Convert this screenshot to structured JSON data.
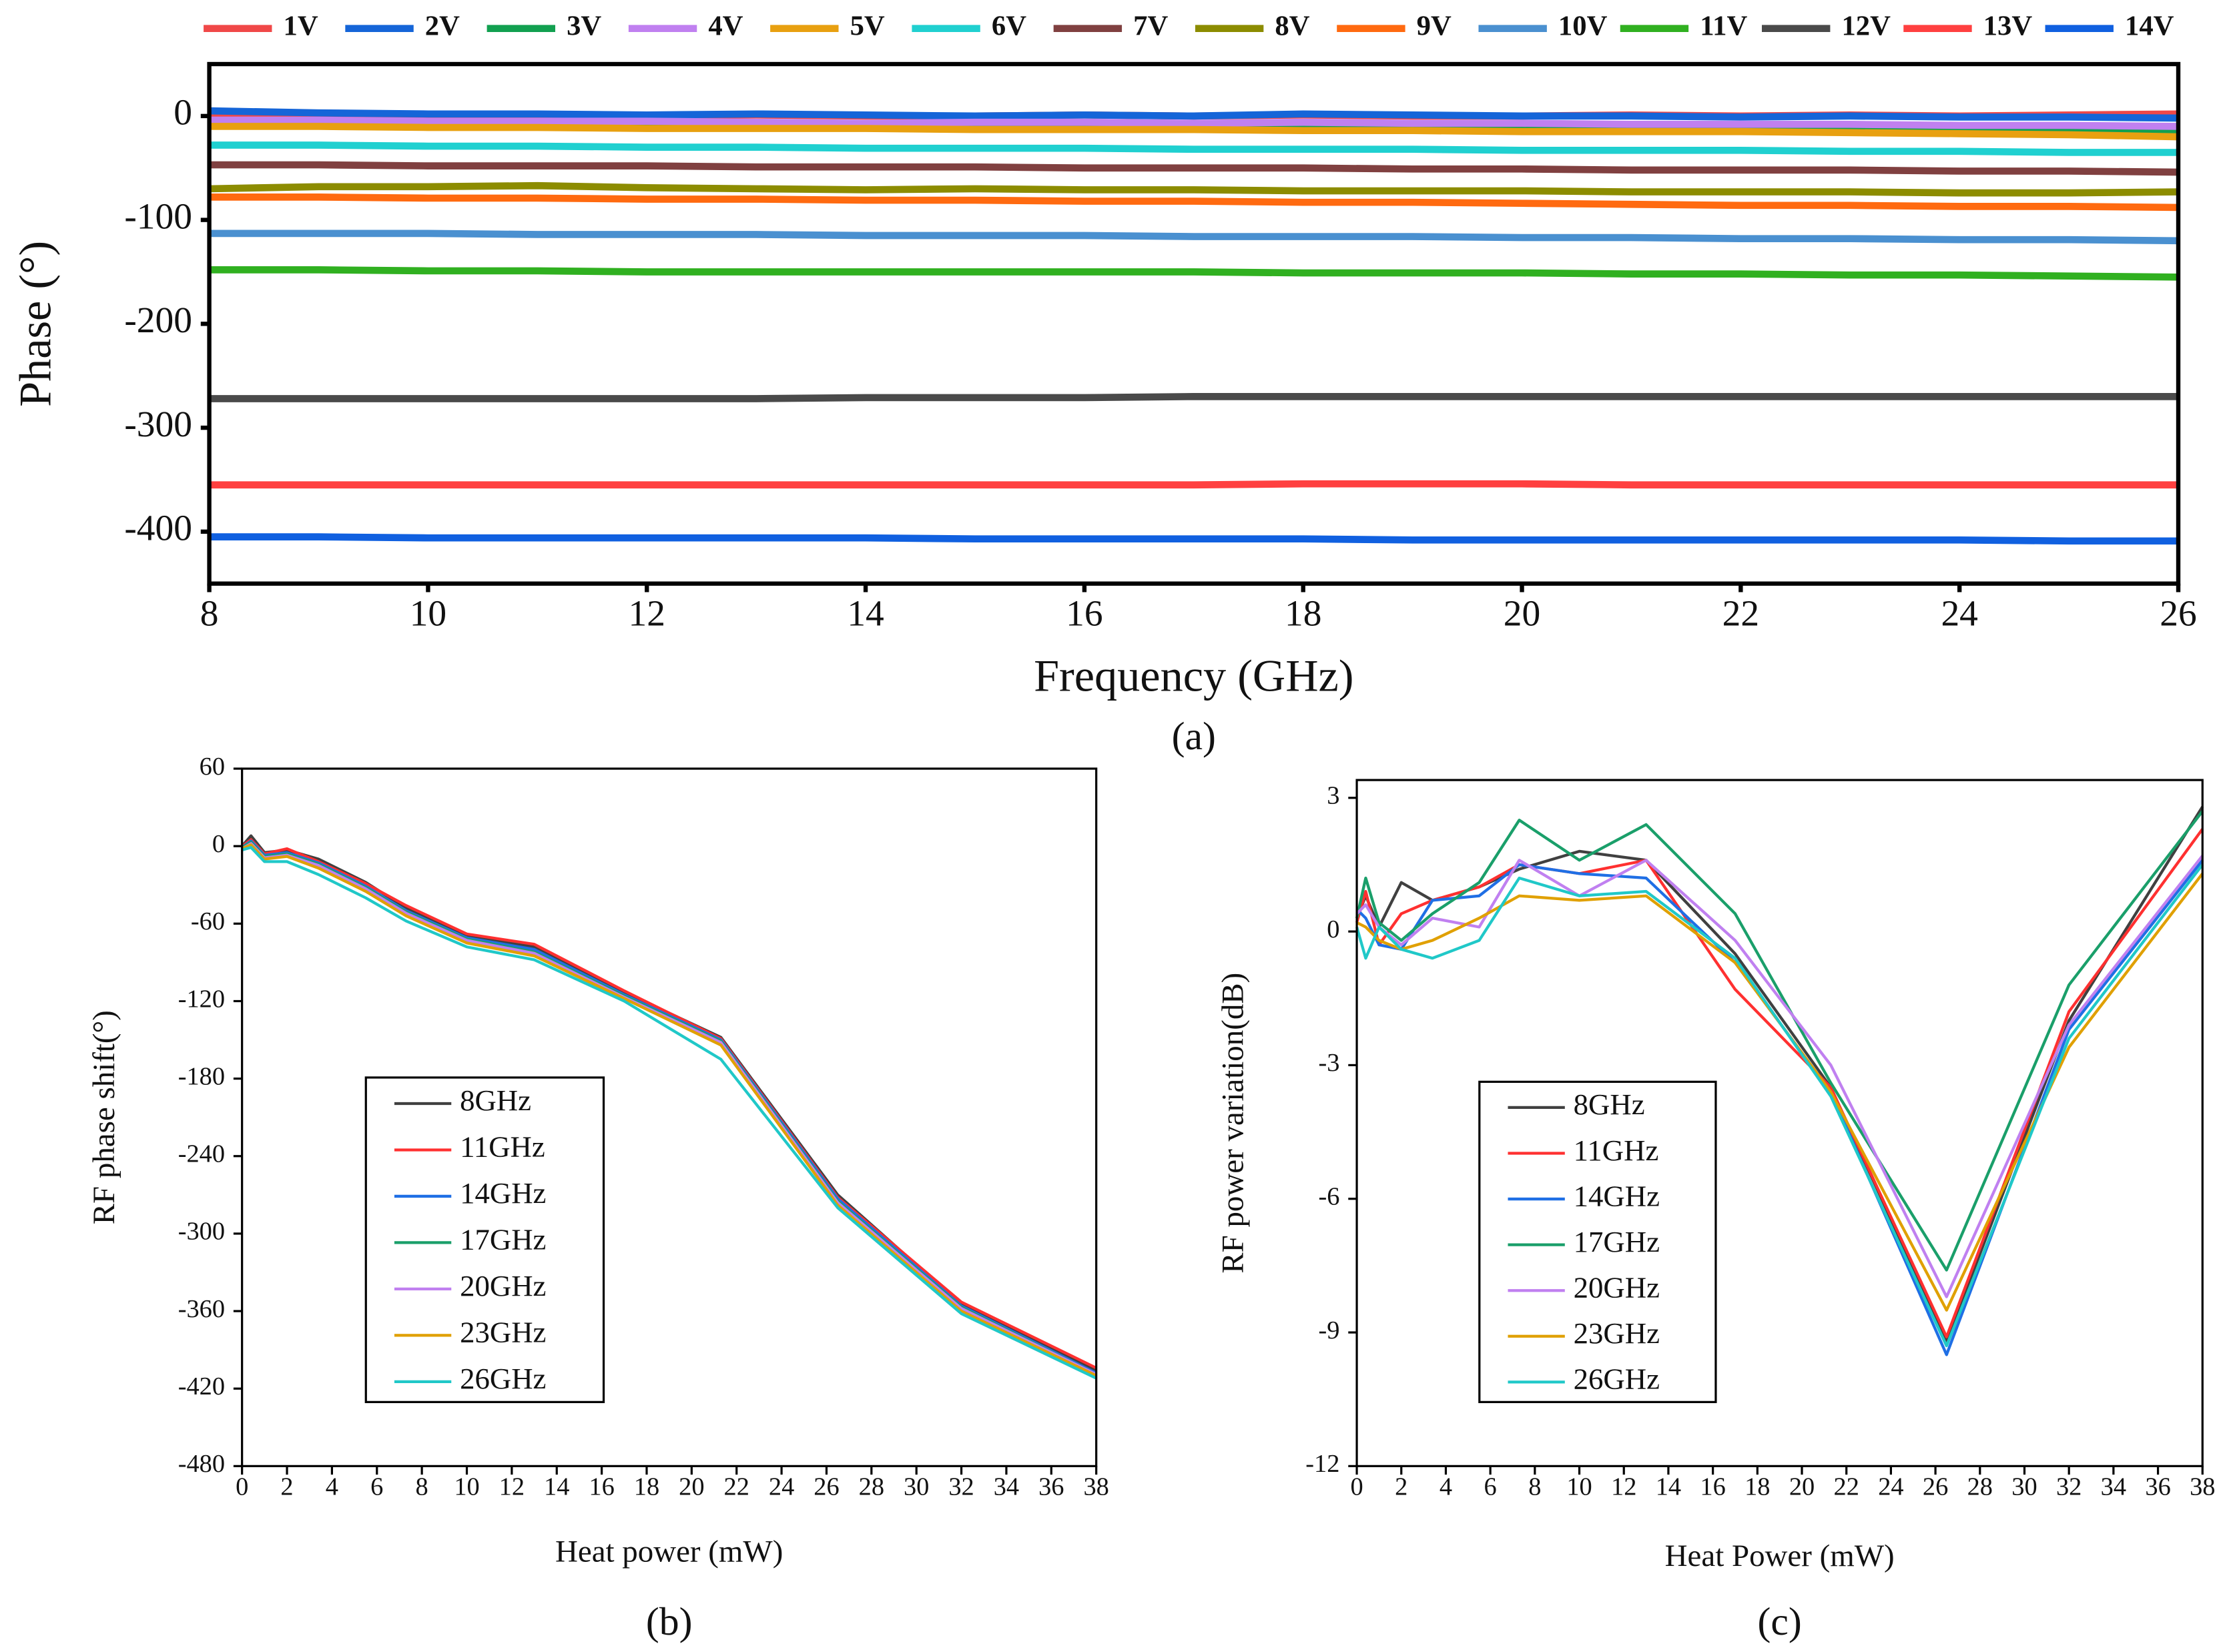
{
  "chart_data": [
    {
      "type": "line",
      "y_label": "Phase (°)",
      "x_label": "Frequency (GHz)",
      "caption": "(a)",
      "legend": "top",
      "xlim": [
        8,
        26
      ],
      "xticks": [
        8,
        10,
        12,
        14,
        16,
        18,
        20,
        22,
        24,
        26
      ],
      "ylim": [
        -450,
        50
      ],
      "yticks": [
        0,
        -100,
        -200,
        -300,
        -400
      ],
      "x": [
        8,
        9,
        10,
        11,
        12,
        13,
        14,
        15,
        16,
        17,
        18,
        19,
        20,
        21,
        22,
        23,
        24,
        25,
        26
      ],
      "series": [
        {
          "name": "1V",
          "color": "#f04848",
          "values": [
            2,
            1,
            0,
            1,
            0,
            1,
            0,
            0,
            1,
            0,
            1,
            0,
            0,
            1,
            0,
            1,
            0,
            1,
            2
          ]
        },
        {
          "name": "2V",
          "color": "#1565d8",
          "values": [
            5,
            3,
            2,
            2,
            1,
            2,
            1,
            0,
            1,
            0,
            2,
            1,
            0,
            0,
            -1,
            0,
            -1,
            -1,
            -2
          ]
        },
        {
          "name": "3V",
          "color": "#12a050",
          "values": [
            -8,
            -9,
            -10,
            -10,
            -11,
            -10,
            -11,
            -12,
            -11,
            -10,
            -11,
            -12,
            -12,
            -13,
            -13,
            -14,
            -14,
            -15,
            -16
          ]
        },
        {
          "name": "4V",
          "color": "#c080f0",
          "values": [
            -4,
            -4,
            -5,
            -5,
            -5,
            -6,
            -7,
            -6,
            -6,
            -7,
            -6,
            -7,
            -7,
            -8,
            -8,
            -8,
            -9,
            -9,
            -10
          ]
        },
        {
          "name": "5V",
          "color": "#e8a010",
          "values": [
            -10,
            -10,
            -11,
            -11,
            -12,
            -12,
            -12,
            -13,
            -13,
            -13,
            -14,
            -14,
            -15,
            -15,
            -15,
            -16,
            -17,
            -18,
            -20
          ]
        },
        {
          "name": "6V",
          "color": "#20d0d0",
          "values": [
            -28,
            -28,
            -29,
            -29,
            -30,
            -30,
            -31,
            -31,
            -31,
            -32,
            -32,
            -32,
            -33,
            -33,
            -33,
            -34,
            -34,
            -35,
            -35
          ]
        },
        {
          "name": "7V",
          "color": "#804040",
          "values": [
            -47,
            -47,
            -48,
            -48,
            -48,
            -49,
            -49,
            -49,
            -50,
            -50,
            -50,
            -51,
            -51,
            -52,
            -52,
            -52,
            -53,
            -53,
            -54
          ]
        },
        {
          "name": "8V",
          "color": "#8c8c00",
          "values": [
            -70,
            -68,
            -68,
            -67,
            -69,
            -70,
            -71,
            -70,
            -71,
            -71,
            -72,
            -72,
            -72,
            -73,
            -73,
            -73,
            -74,
            -74,
            -73
          ]
        },
        {
          "name": "9V",
          "color": "#ff6a10",
          "values": [
            -78,
            -78,
            -79,
            -79,
            -80,
            -80,
            -81,
            -81,
            -82,
            -82,
            -83,
            -83,
            -84,
            -85,
            -86,
            -86,
            -87,
            -87,
            -88
          ]
        },
        {
          "name": "10V",
          "color": "#4a90d0",
          "values": [
            -113,
            -113,
            -113,
            -114,
            -114,
            -114,
            -115,
            -115,
            -115,
            -116,
            -116,
            -116,
            -117,
            -117,
            -118,
            -118,
            -119,
            -119,
            -120
          ]
        },
        {
          "name": "11V",
          "color": "#30b020",
          "values": [
            -148,
            -148,
            -149,
            -149,
            -150,
            -150,
            -150,
            -150,
            -150,
            -150,
            -151,
            -151,
            -151,
            -152,
            -152,
            -153,
            -153,
            -154,
            -155
          ]
        },
        {
          "name": "12V",
          "color": "#4a4a4a",
          "values": [
            -272,
            -272,
            -272,
            -272,
            -272,
            -272,
            -271,
            -271,
            -271,
            -270,
            -270,
            -270,
            -270,
            -270,
            -270,
            -270,
            -270,
            -270,
            -270
          ]
        },
        {
          "name": "13V",
          "color": "#ff4040",
          "values": [
            -355,
            -355,
            -355,
            -355,
            -355,
            -355,
            -355,
            -355,
            -355,
            -355,
            -354,
            -354,
            -354,
            -355,
            -355,
            -355,
            -355,
            -355,
            -355
          ]
        },
        {
          "name": "14V",
          "color": "#1060e0",
          "values": [
            -405,
            -405,
            -406,
            -406,
            -406,
            -406,
            -406,
            -407,
            -407,
            -407,
            -407,
            -408,
            -408,
            -408,
            -408,
            -408,
            -408,
            -409,
            -409
          ]
        }
      ]
    },
    {
      "type": "line",
      "y_label": "RF phase shift(°)",
      "x_label": "Heat power (mW)",
      "caption": "(b)",
      "legend": "lower left",
      "xlim": [
        0,
        38
      ],
      "xticks": [
        0,
        2,
        4,
        6,
        8,
        10,
        12,
        14,
        16,
        18,
        20,
        22,
        24,
        26,
        28,
        30,
        32,
        34,
        36,
        38
      ],
      "ylim": [
        -480,
        60
      ],
      "yticks": [
        60,
        0,
        -60,
        -120,
        -180,
        -240,
        -300,
        -360,
        -420,
        -480
      ],
      "x": [
        0,
        0.4,
        1,
        2,
        3.4,
        5.5,
        7.3,
        10,
        13,
        17,
        21.3,
        26.5,
        32,
        38
      ],
      "series": [
        {
          "name": "8GHz",
          "color": "#404040",
          "values": [
            0,
            8,
            -5,
            -3,
            -10,
            -28,
            -48,
            -70,
            -78,
            -113,
            -148,
            -270,
            -355,
            -406
          ]
        },
        {
          "name": "11GHz",
          "color": "#ff3030",
          "values": [
            0,
            5,
            -6,
            -2,
            -12,
            -29,
            -46,
            -68,
            -76,
            -112,
            -149,
            -272,
            -353,
            -404
          ]
        },
        {
          "name": "14GHz",
          "color": "#1f6fe5",
          "values": [
            -1,
            4,
            -7,
            -5,
            -13,
            -31,
            -50,
            -71,
            -80,
            -115,
            -150,
            -273,
            -356,
            -408
          ]
        },
        {
          "name": "17GHz",
          "color": "#1a9f6a",
          "values": [
            -1,
            3,
            -8,
            -6,
            -14,
            -32,
            -51,
            -72,
            -82,
            -116,
            -151,
            -275,
            -357,
            -409
          ]
        },
        {
          "name": "20GHz",
          "color": "#c080f0",
          "values": [
            -2,
            2,
            -9,
            -7,
            -15,
            -33,
            -52,
            -73,
            -83,
            -117,
            -152,
            -276,
            -358,
            -409
          ]
        },
        {
          "name": "23GHz",
          "color": "#e0a000",
          "values": [
            -2,
            1,
            -10,
            -8,
            -17,
            -35,
            -54,
            -75,
            -85,
            -118,
            -154,
            -278,
            -360,
            -410
          ]
        },
        {
          "name": "26GHz",
          "color": "#20c8c8",
          "values": [
            -3,
            -1,
            -12,
            -12,
            -22,
            -40,
            -58,
            -78,
            -88,
            -120,
            -165,
            -280,
            -362,
            -412
          ]
        }
      ]
    },
    {
      "type": "line",
      "y_label": "RF power variation(dB)",
      "x_label": "Heat Power (mW)",
      "caption": "(c)",
      "legend": "lower left",
      "xlim": [
        0,
        38
      ],
      "xticks": [
        0,
        2,
        4,
        6,
        8,
        10,
        12,
        14,
        16,
        18,
        20,
        22,
        24,
        26,
        28,
        30,
        32,
        34,
        36,
        38
      ],
      "ylim": [
        -12,
        3.4
      ],
      "yticks": [
        3,
        0,
        -3,
        -6,
        -9,
        -12
      ],
      "x": [
        0,
        0.4,
        1,
        2,
        3.4,
        5.5,
        7.3,
        10,
        13,
        17,
        21.3,
        26.5,
        32,
        38
      ],
      "series": [
        {
          "name": "8GHz",
          "color": "#404040",
          "values": [
            0.3,
            0.8,
            0.1,
            1.1,
            0.7,
            1.0,
            1.4,
            1.8,
            1.6,
            -0.5,
            -3.5,
            -9.2,
            -2.0,
            2.8
          ]
        },
        {
          "name": "11GHz",
          "color": "#ff3030",
          "values": [
            0.2,
            0.9,
            -0.3,
            0.4,
            0.7,
            1.0,
            1.5,
            1.3,
            1.6,
            -1.3,
            -3.5,
            -9.1,
            -1.8,
            2.3
          ]
        },
        {
          "name": "14GHz",
          "color": "#1f6fe5",
          "values": [
            0.5,
            0.3,
            -0.3,
            -0.4,
            0.7,
            0.8,
            1.5,
            1.3,
            1.2,
            -0.7,
            -3.6,
            -9.5,
            -2.2,
            1.6
          ]
        },
        {
          "name": "17GHz",
          "color": "#1a9f6a",
          "values": [
            0.3,
            1.2,
            0.2,
            -0.2,
            0.4,
            1.1,
            2.5,
            1.6,
            2.4,
            0.4,
            -3.4,
            -7.6,
            -1.2,
            2.7
          ]
        },
        {
          "name": "20GHz",
          "color": "#c080f0",
          "values": [
            0.4,
            0.6,
            0.1,
            -0.3,
            0.3,
            0.1,
            1.6,
            0.8,
            1.6,
            -0.2,
            -3.0,
            -8.2,
            -2.1,
            1.7
          ]
        },
        {
          "name": "23GHz",
          "color": "#e0a000",
          "values": [
            0.2,
            0.1,
            -0.2,
            -0.4,
            -0.2,
            0.3,
            0.8,
            0.7,
            0.8,
            -0.7,
            -3.6,
            -8.5,
            -2.6,
            1.3
          ]
        },
        {
          "name": "26GHz",
          "color": "#20c8c8",
          "values": [
            0.1,
            -0.6,
            0.1,
            -0.4,
            -0.6,
            -0.2,
            1.2,
            0.8,
            0.9,
            -0.6,
            -3.7,
            -9.3,
            -2.4,
            1.5
          ]
        }
      ]
    }
  ]
}
